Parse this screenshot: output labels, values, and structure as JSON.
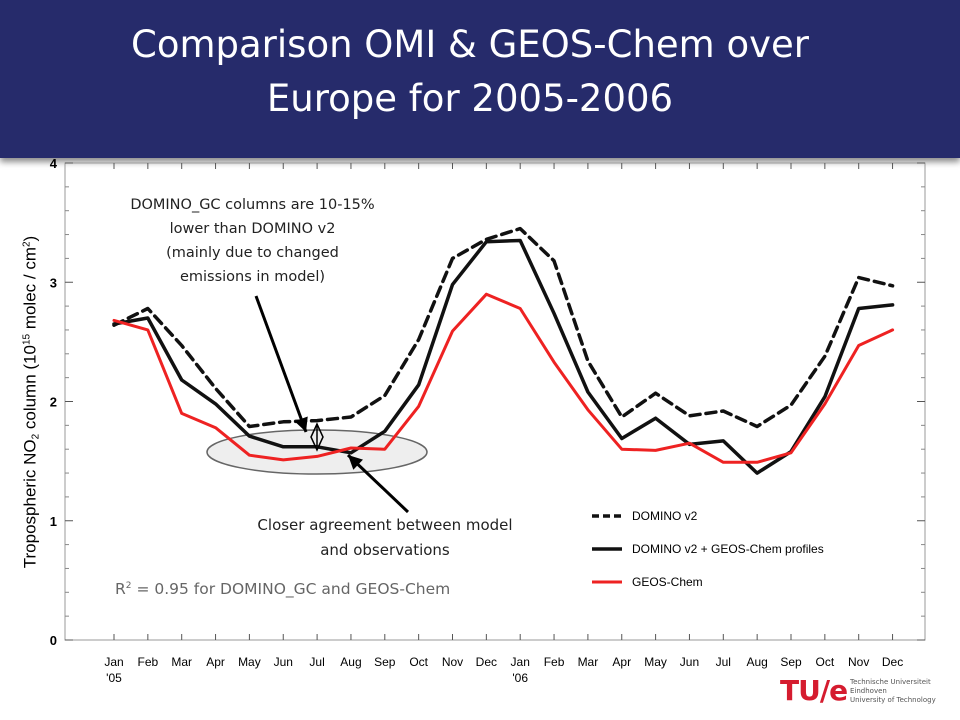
{
  "title_line1": "Comparison OMI & GEOS-Chem over",
  "title_line2": "Europe for 2005-2006",
  "ylabel": {
    "prefix": "Tropospheric NO",
    "sub": "2",
    "mid": " column (10",
    "sup": "15",
    "mid2": " molec / cm",
    "sup2": "2",
    "suffix": ")"
  },
  "annotations": {
    "note1": [
      "DOMINO_GC columns are 10-15%",
      "lower than DOMINO v2",
      "(mainly due to changed",
      "emissions in model)"
    ],
    "note2": [
      "Closer agreement between model",
      "and observations"
    ],
    "note3_prefix": "R",
    "note3_sup": "2",
    "note3_suffix": " = 0.95 for DOMINO_GC and GEOS-Chem"
  },
  "logo": {
    "mark": "TU/e",
    "line1": "Technische Universiteit",
    "line2": "Eindhoven",
    "line3": "University of Technology"
  },
  "colors": {
    "banner": "#262b6b",
    "domino": "#111111",
    "domino_gc": "#111111",
    "geos_chem": "#ee2222",
    "arrow": "#000000",
    "ellipse": "#666666"
  },
  "chart_data": {
    "type": "line",
    "categories": [
      "Jan",
      "Feb",
      "Mar",
      "Apr",
      "May",
      "Jun",
      "Jul",
      "Aug",
      "Sep",
      "Oct",
      "Nov",
      "Dec",
      "Jan",
      "Feb",
      "Mar",
      "Apr",
      "May",
      "Jun",
      "Jul",
      "Aug",
      "Sep",
      "Oct",
      "Nov",
      "Dec"
    ],
    "category_sublabels": [
      "'05",
      "",
      "",
      "",
      "",
      "",
      "",
      "",
      "",
      "",
      "",
      "",
      "'06",
      "",
      "",
      "",
      "",
      "",
      "",
      "",
      "",
      "",
      "",
      ""
    ],
    "ylim": [
      0,
      4
    ],
    "yticks": [
      0,
      1,
      2,
      3,
      4
    ],
    "grid": false,
    "legend_position": "bottom-right",
    "series": [
      {
        "name": "DOMINO v2",
        "style": "dashed",
        "values": [
          2.64,
          2.78,
          2.47,
          2.11,
          1.79,
          1.83,
          1.84,
          1.87,
          2.05,
          2.52,
          3.2,
          3.36,
          3.45,
          3.18,
          2.34,
          1.87,
          2.07,
          1.88,
          1.92,
          1.79,
          1.97,
          2.38,
          3.04,
          2.97
        ]
      },
      {
        "name": "DOMINO v2 + GEOS-Chem profiles",
        "style": "solid",
        "values": [
          2.65,
          2.7,
          2.18,
          1.98,
          1.71,
          1.62,
          1.62,
          1.57,
          1.75,
          2.14,
          2.98,
          3.34,
          3.35,
          2.74,
          2.08,
          1.69,
          1.86,
          1.64,
          1.67,
          1.4,
          1.58,
          2.04,
          2.78,
          2.81
        ]
      },
      {
        "name": "GEOS-Chem",
        "style": "solid",
        "values": [
          2.68,
          2.6,
          1.9,
          1.78,
          1.55,
          1.51,
          1.54,
          1.61,
          1.6,
          1.96,
          2.59,
          2.9,
          2.78,
          2.33,
          1.93,
          1.6,
          1.59,
          1.65,
          1.49,
          1.49,
          1.57,
          1.98,
          2.47,
          2.6
        ]
      }
    ]
  }
}
